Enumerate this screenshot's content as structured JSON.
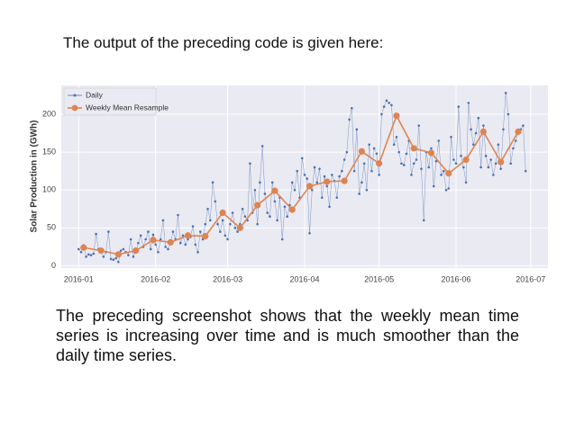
{
  "header": "The output of the preceding code is given here:",
  "caption": "The preceding screenshot shows that the weekly mean time series is increasing over time and is much smoother than the daily time series.",
  "chart_data": {
    "type": "line",
    "ylabel": "Solar Production in (GWh)",
    "xlim": [
      -7,
      189
    ],
    "xticks": [
      {
        "value": 0,
        "label": "2016-01"
      },
      {
        "value": 31,
        "label": "2016-02"
      },
      {
        "value": 60,
        "label": "2016-03"
      },
      {
        "value": 91,
        "label": "2016-04"
      },
      {
        "value": 121,
        "label": "2016-05"
      },
      {
        "value": 152,
        "label": "2016-06"
      },
      {
        "value": 182,
        "label": "2016-07"
      }
    ],
    "ylim": [
      -3,
      238
    ],
    "yticks": [
      0,
      50,
      100,
      150,
      200
    ],
    "grid": true,
    "legend": "upper left",
    "series": [
      {
        "name": "Daily",
        "color": "#4c72b0",
        "x": [
          0,
          1,
          2,
          3,
          4,
          5,
          6,
          7,
          8,
          9,
          10,
          11,
          12,
          13,
          14,
          15,
          16,
          17,
          18,
          19,
          20,
          21,
          22,
          23,
          24,
          25,
          26,
          27,
          28,
          29,
          30,
          31,
          32,
          33,
          34,
          35,
          36,
          37,
          38,
          39,
          40,
          41,
          42,
          43,
          44,
          45,
          46,
          47,
          48,
          49,
          50,
          51,
          52,
          53,
          54,
          55,
          56,
          57,
          58,
          59,
          60,
          61,
          62,
          63,
          64,
          65,
          66,
          67,
          68,
          69,
          70,
          71,
          72,
          73,
          74,
          75,
          76,
          77,
          78,
          79,
          80,
          81,
          82,
          83,
          84,
          85,
          86,
          87,
          88,
          89,
          90,
          91,
          92,
          93,
          94,
          95,
          96,
          97,
          98,
          99,
          100,
          101,
          102,
          103,
          104,
          105,
          106,
          107,
          108,
          109,
          110,
          111,
          112,
          113,
          114,
          115,
          116,
          117,
          118,
          119,
          120,
          121,
          122,
          123,
          124,
          125,
          126,
          127,
          128,
          129,
          130,
          131,
          132,
          133,
          134,
          135,
          136,
          137,
          138,
          139,
          140,
          141,
          142,
          143,
          144,
          145,
          146,
          147,
          148,
          149,
          150,
          151,
          152,
          153,
          154,
          155,
          156,
          157,
          158,
          159,
          160,
          161,
          162,
          163,
          164,
          165,
          166,
          167,
          168,
          169,
          170,
          171,
          172,
          173,
          174,
          175,
          176,
          177,
          178,
          179,
          180
        ],
        "values": [
          22,
          18,
          27,
          12,
          15,
          14,
          16,
          42,
          22,
          19,
          12,
          18,
          45,
          9,
          8,
          10,
          5,
          20,
          22,
          18,
          14,
          35,
          12,
          19,
          30,
          40,
          25,
          35,
          45,
          22,
          41,
          28,
          18,
          35,
          60,
          25,
          22,
          30,
          45,
          35,
          67,
          30,
          40,
          28,
          35,
          38,
          52,
          28,
          18,
          45,
          35,
          55,
          75,
          60,
          110,
          85,
          55,
          45,
          60,
          40,
          35,
          55,
          70,
          50,
          45,
          55,
          75,
          65,
          60,
          135,
          70,
          100,
          55,
          110,
          158,
          95,
          70,
          65,
          110,
          85,
          60,
          90,
          35,
          78,
          65,
          80,
          110,
          100,
          125,
          90,
          142,
          120,
          115,
          43,
          100,
          130,
          110,
          128,
          90,
          118,
          105,
          78,
          120,
          112,
          90,
          118,
          125,
          140,
          150,
          193,
          208,
          125,
          180,
          95,
          110,
          135,
          100,
          160,
          125,
          155,
          148,
          120,
          200,
          210,
          218,
          215,
          212,
          160,
          170,
          150,
          135,
          133,
          148,
          165,
          120,
          135,
          140,
          185,
          128,
          60,
          150,
          130,
          155,
          105,
          138,
          165,
          120,
          125,
          100,
          102,
          170,
          140,
          135,
          210,
          145,
          130,
          110,
          215,
          180,
          160,
          175,
          195,
          130,
          185,
          145,
          130,
          140,
          120,
          135,
          160,
          128,
          180,
          228,
          200,
          135,
          155,
          165,
          175,
          180,
          185,
          125
        ]
      },
      {
        "name": "Weekly Mean Resample",
        "color": "#dd8452",
        "x": [
          2,
          9,
          16,
          23,
          30,
          37,
          44,
          51,
          58,
          65,
          72,
          79,
          86,
          93,
          100,
          107,
          114,
          121,
          128,
          135,
          142,
          149,
          156,
          163,
          170,
          177
        ],
        "values": [
          24,
          20,
          15,
          20,
          34,
          31,
          40,
          39,
          70,
          50,
          80,
          99,
          74,
          105,
          111,
          112,
          151,
          135,
          198,
          155,
          149,
          122,
          140,
          177,
          137,
          177
        ]
      }
    ]
  }
}
